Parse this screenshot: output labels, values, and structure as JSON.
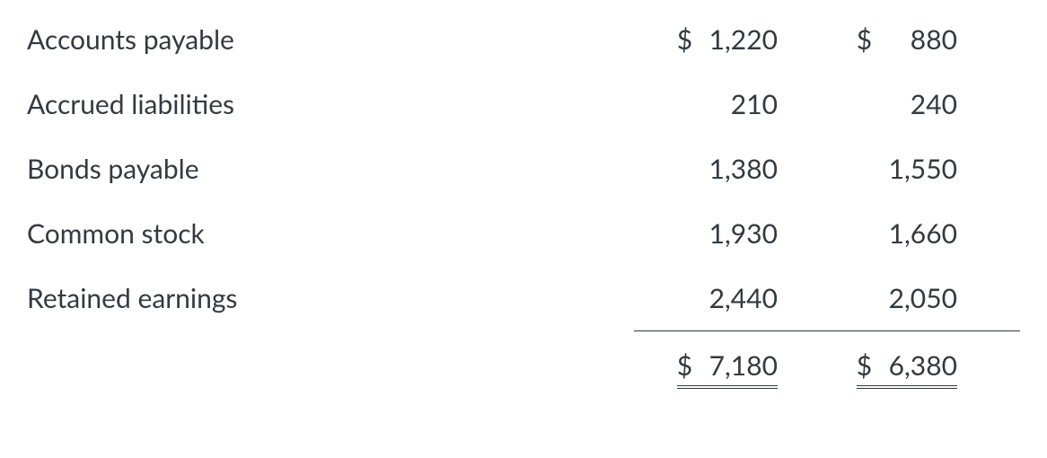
{
  "table": {
    "type": "table",
    "text_color": "#333a40",
    "background_color": "#ffffff",
    "fontsize": 30,
    "rows": [
      {
        "label": "Accounts payable",
        "col1_cur": "$",
        "col1_val": "1,220",
        "col2_cur": "$",
        "col2_val": "880"
      },
      {
        "label": "Accrued liabilities",
        "col1_cur": "",
        "col1_val": "210",
        "col2_cur": "",
        "col2_val": "240"
      },
      {
        "label": "Bonds payable",
        "col1_cur": "",
        "col1_val": "1,380",
        "col2_cur": "",
        "col2_val": "1,550"
      },
      {
        "label": "Common stock",
        "col1_cur": "",
        "col1_val": "1,930",
        "col2_cur": "",
        "col2_val": "1,660"
      },
      {
        "label": "Retained earnings",
        "col1_cur": "",
        "col1_val": "2,440",
        "col2_cur": "",
        "col2_val": "2,050"
      }
    ],
    "totals": {
      "col1_cur": "$",
      "col1_val": "7,180",
      "col2_cur": "$",
      "col2_val": "6,380"
    }
  }
}
